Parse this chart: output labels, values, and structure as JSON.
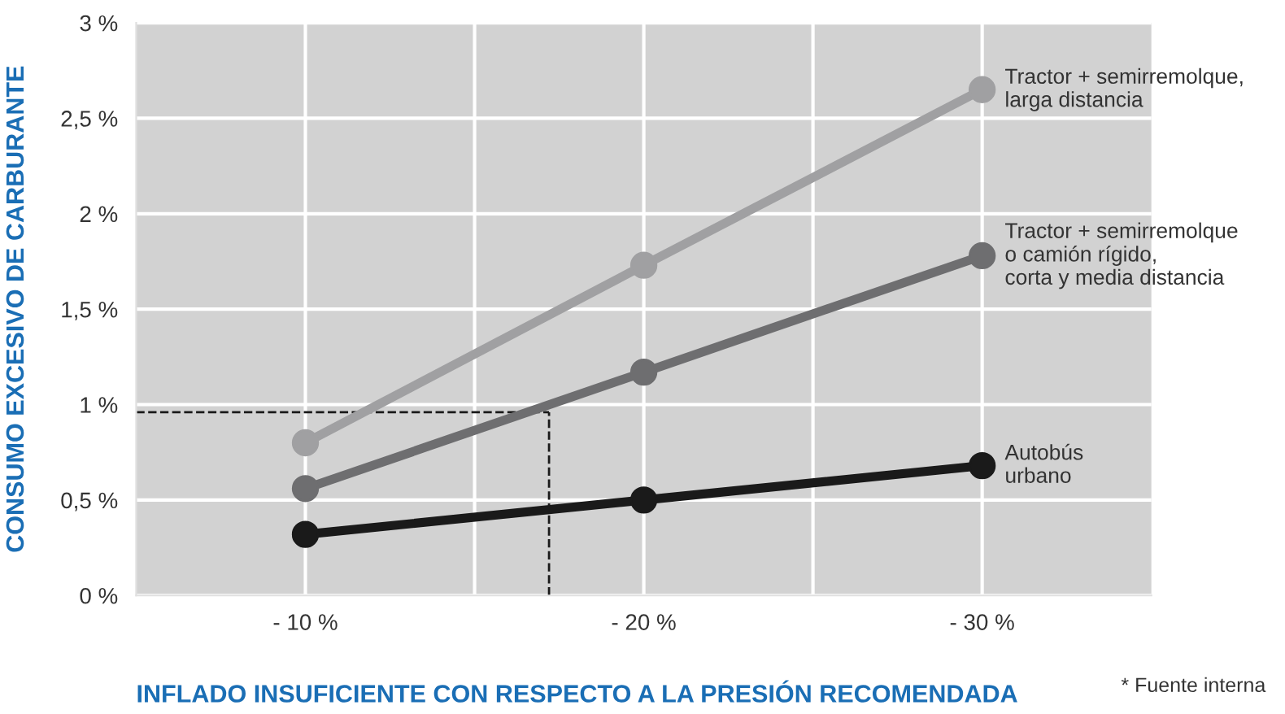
{
  "chart_data": {
    "type": "line",
    "xlabel": "INFLADO INSUFICIENTE CON RESPECTO A LA PRESIÓN RECOMENDADA",
    "ylabel": "CONSUMO EXCESIVO DE CARBURANTE",
    "x": [
      -10,
      -20,
      -30
    ],
    "series": [
      {
        "name": "Tractor + semirremolque,\nlarga distancia",
        "color": "#a0a0a2",
        "values": [
          0.8,
          1.73,
          2.65
        ]
      },
      {
        "name": "Tractor + semirremolque\no camión rígido,\ncorta y media distancia",
        "color": "#6e6e70",
        "values": [
          0.56,
          1.17,
          1.78
        ]
      },
      {
        "name": "Autobús\nurbano",
        "color": "#1a1a1a",
        "values": [
          0.32,
          0.5,
          0.68
        ]
      }
    ],
    "xlim": [
      -5,
      -35
    ],
    "xticks": [
      {
        "value": -10,
        "label": "- 10 %"
      },
      {
        "value": -15,
        "label": null
      },
      {
        "value": -20,
        "label": "- 20 %"
      },
      {
        "value": -25,
        "label": null
      },
      {
        "value": -30,
        "label": "- 30 %"
      }
    ],
    "ylim": [
      0,
      3
    ],
    "yticks": [
      {
        "value": 0,
        "label": "0 %"
      },
      {
        "value": 0.5,
        "label": "0,5 %"
      },
      {
        "value": 1,
        "label": "1 %"
      },
      {
        "value": 1.5,
        "label": "1,5 %"
      },
      {
        "value": 2,
        "label": "2 %"
      },
      {
        "value": 2.5,
        "label": "2,5 %"
      },
      {
        "value": 3,
        "label": "3 %"
      }
    ],
    "ref_lines": [
      {
        "axis": "y",
        "value": 0.96,
        "color": "#1a1a1a",
        "line_style": "dashed"
      },
      {
        "axis": "x",
        "value": -17.2,
        "color": "#1a1a1a",
        "line_style": "dashed"
      }
    ],
    "grid": true,
    "marker": "circle",
    "line_style": "solid",
    "legend": false,
    "annotations": [
      "* Fuente interna"
    ]
  }
}
